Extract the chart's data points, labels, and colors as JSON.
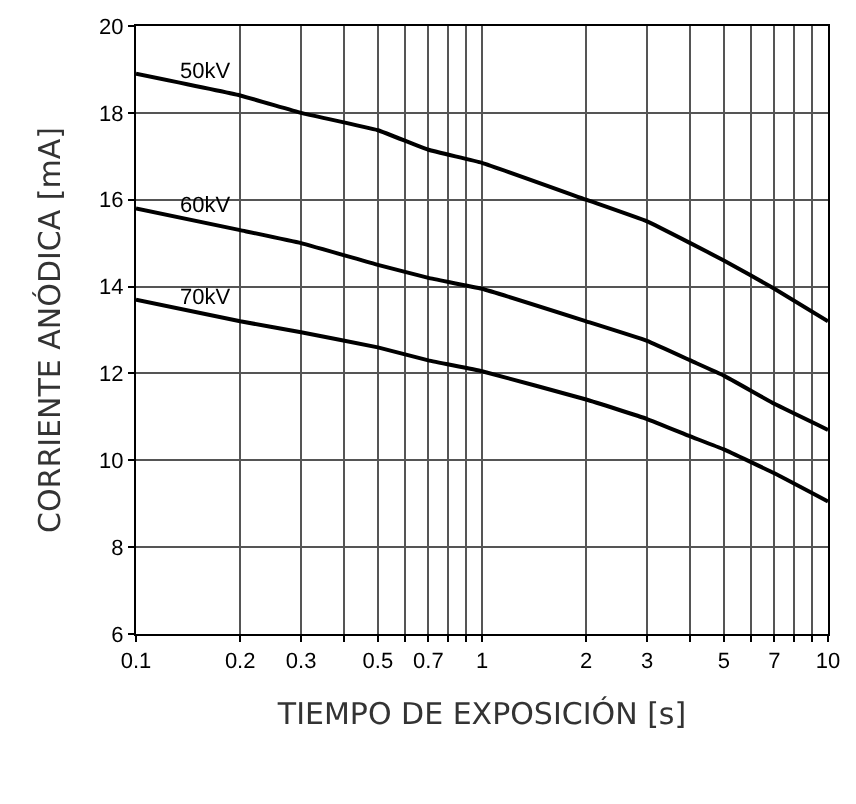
{
  "chart_data": {
    "type": "line",
    "xlabel": "TIEMPO DE EXPOSICIÓN [s]",
    "ylabel": "CORRIENTE ANÓDICA [mA]",
    "x": [
      0.1,
      0.2,
      0.3,
      0.5,
      0.7,
      1,
      2,
      3,
      4,
      5,
      7,
      10
    ],
    "series": [
      {
        "name": "50kV",
        "color": "#000000",
        "values": [
          18.9,
          18.4,
          18.0,
          17.6,
          17.15,
          16.85,
          16.0,
          15.5,
          15.0,
          14.6,
          13.95,
          13.2
        ]
      },
      {
        "name": "60kV",
        "color": "#000000",
        "values": [
          15.8,
          15.3,
          15.0,
          14.5,
          14.2,
          13.95,
          13.2,
          12.75,
          12.3,
          11.95,
          11.3,
          10.7
        ]
      },
      {
        "name": "70kV",
        "color": "#000000",
        "values": [
          13.7,
          13.2,
          12.95,
          12.6,
          12.3,
          12.05,
          11.4,
          10.95,
          10.55,
          10.25,
          9.7,
          9.05
        ]
      }
    ],
    "log": "x",
    "xlim": [
      0.1,
      10
    ],
    "xticks": [
      0.1,
      0.2,
      0.3,
      {
        "value": 0.4,
        "label": null
      },
      0.5,
      {
        "value": 0.6,
        "label": null
      },
      0.7,
      {
        "value": 0.8,
        "label": null
      },
      {
        "value": 0.9,
        "label": null
      },
      1,
      2,
      3,
      {
        "value": 4,
        "label": null
      },
      5,
      {
        "value": 6,
        "label": null
      },
      7,
      {
        "value": 8,
        "label": null
      },
      {
        "value": 9,
        "label": null
      },
      10
    ],
    "ylim": [
      6,
      20
    ],
    "yticks": [
      6,
      8,
      10,
      12,
      14,
      16,
      18,
      20
    ],
    "grid": true,
    "legend": false,
    "marker": "none",
    "line_style": "solid"
  }
}
